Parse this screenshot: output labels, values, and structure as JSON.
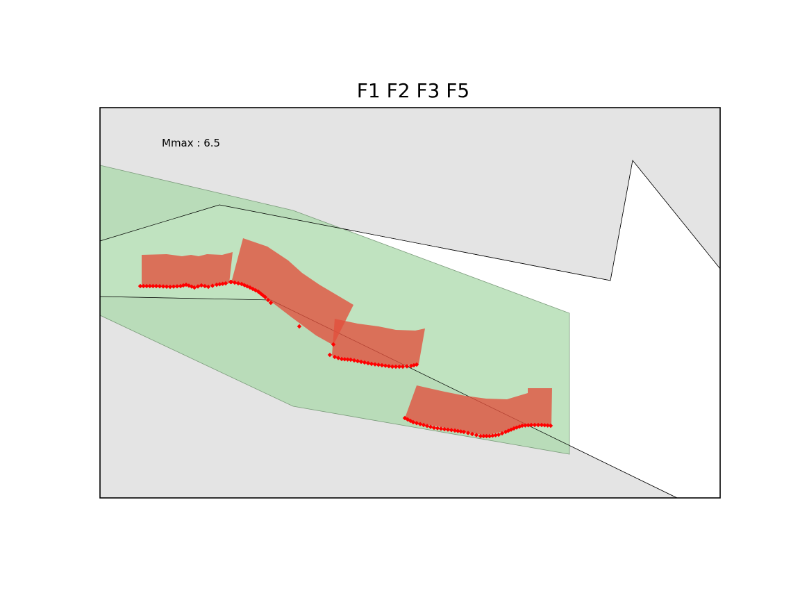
{
  "title": "F1 F2 F3 F5",
  "annotation": "Mmax : 6.5",
  "colors": {
    "background": "#ffffff",
    "land": "#e4e4e4",
    "zone": "#c2e0c2",
    "zone_outline": "#8aa88a",
    "fault_plane": "#d9614c",
    "fault_trace": "#ff0000",
    "frame": "#000000"
  },
  "legend": "none"
}
